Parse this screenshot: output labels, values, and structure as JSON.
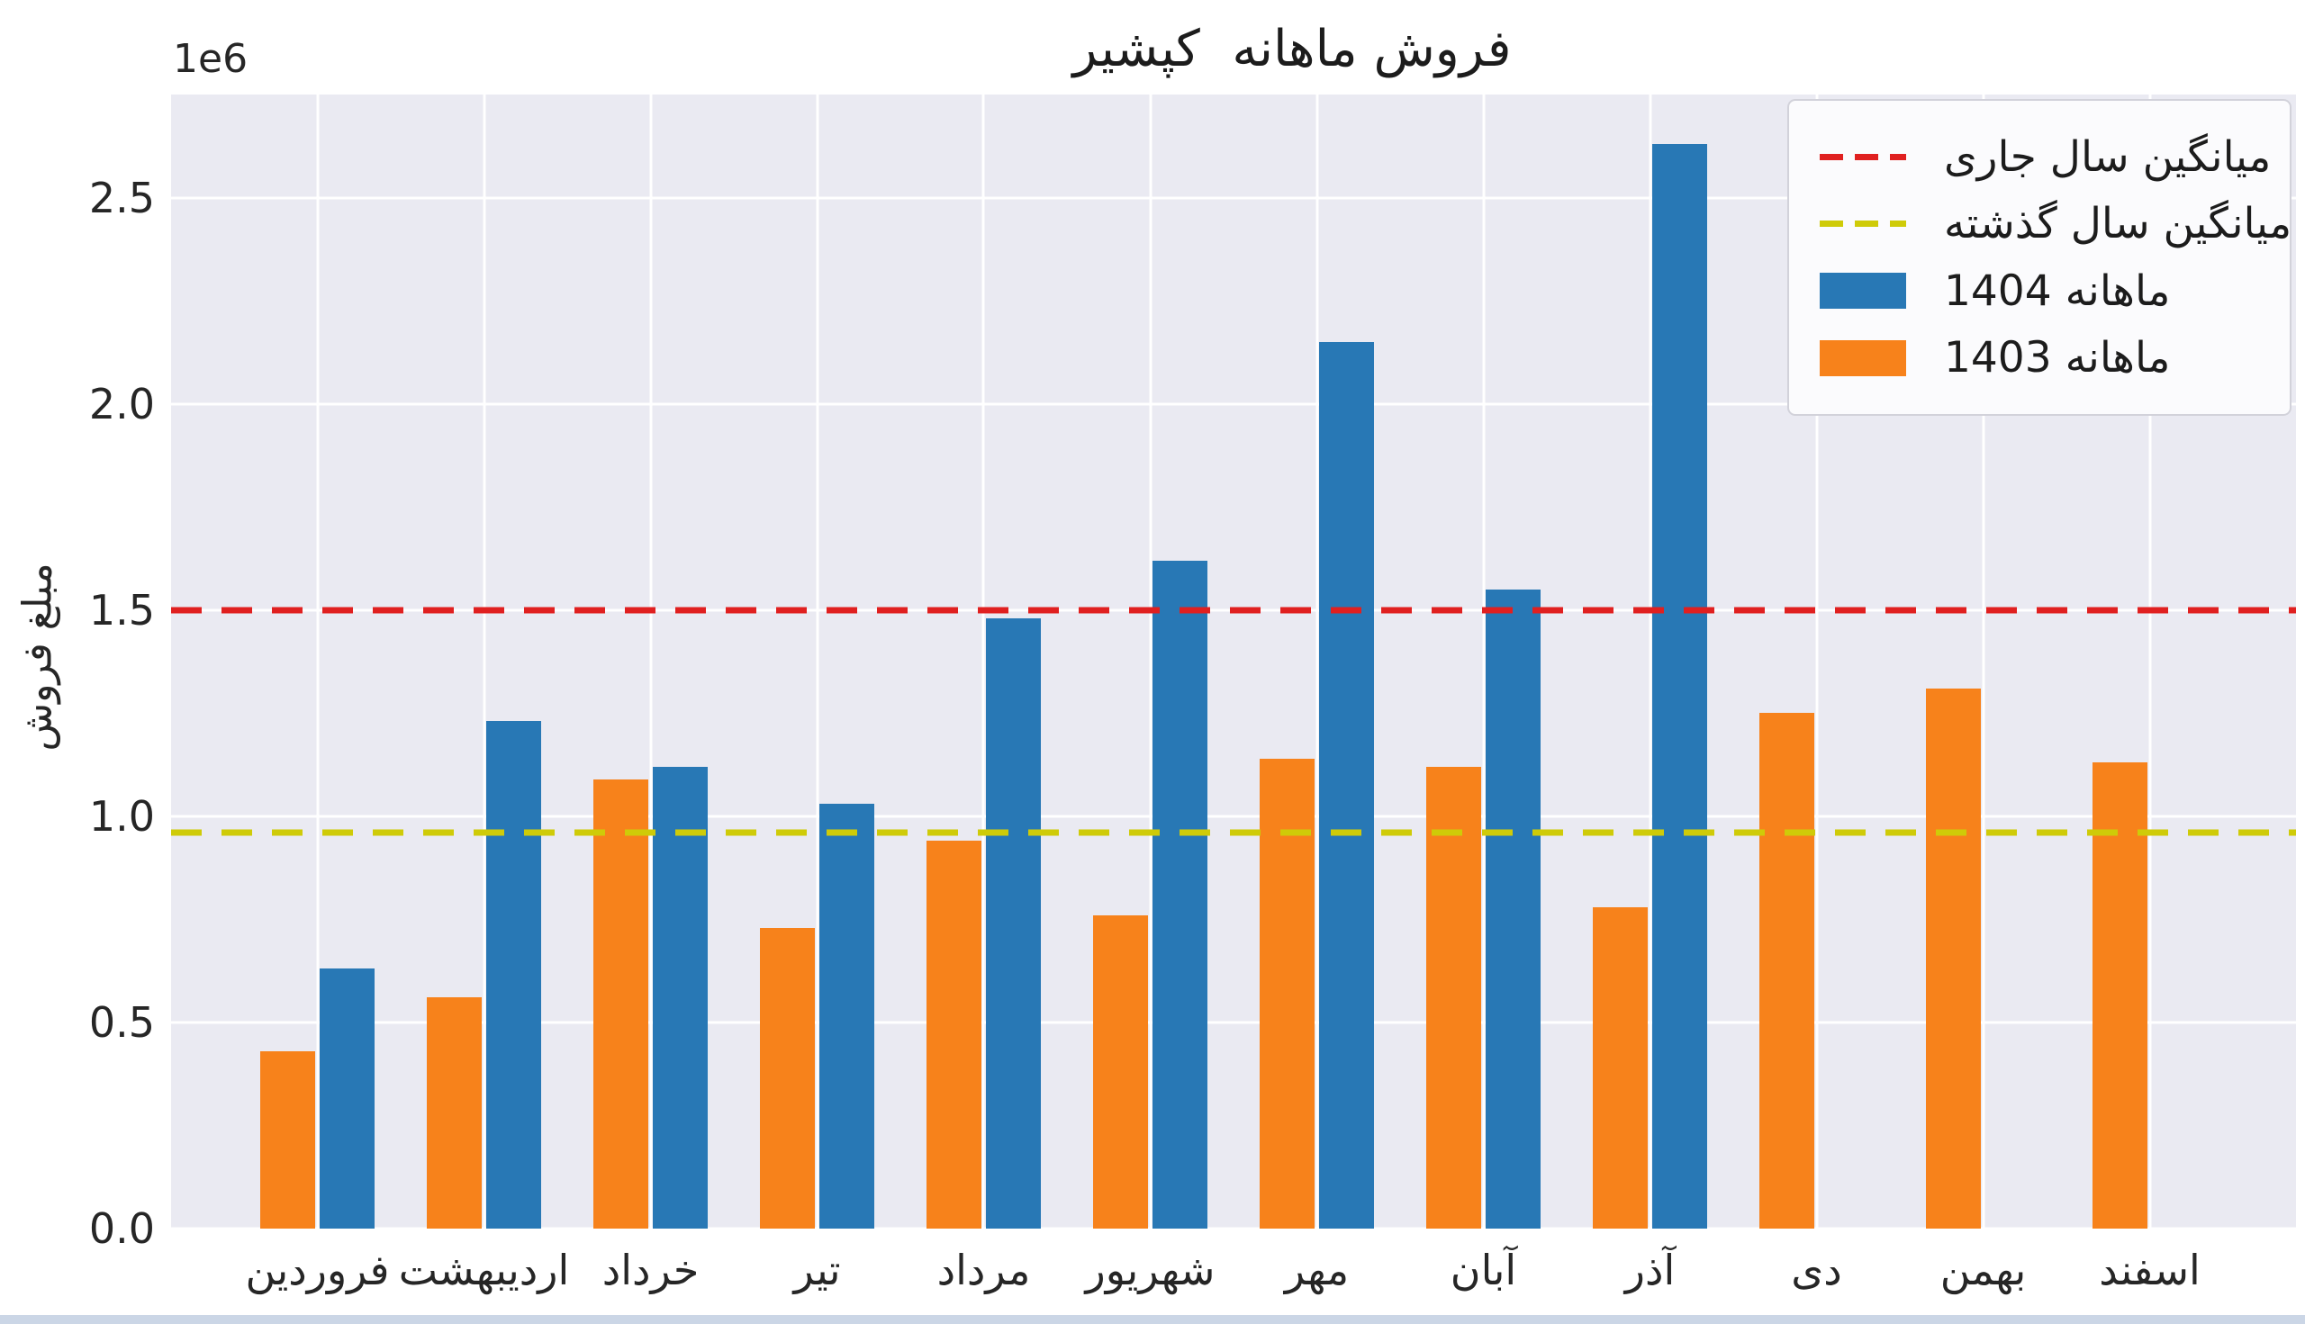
{
  "chart_data": {
    "type": "bar",
    "title": "فروش ماهانه  کپشیر",
    "ylabel": "مبلغ فروش",
    "xlabel": "",
    "scale_label": "1e6",
    "categories": [
      "فروردین",
      "اردیبهشت",
      "خرداد",
      "تیر",
      "مرداد",
      "شهریور",
      "مهر",
      "آبان",
      "آذر",
      "دی",
      "بهمن",
      "اسفند"
    ],
    "series": [
      {
        "name": "ماهانه 1404",
        "color": "#2878b5",
        "values": [
          630000,
          1230000,
          1120000,
          1030000,
          1480000,
          1620000,
          2150000,
          1550000,
          2630000,
          null,
          null,
          null
        ]
      },
      {
        "name": "ماهانه 1403",
        "color": "#f7821b",
        "values": [
          430000,
          560000,
          1090000,
          730000,
          940000,
          760000,
          1140000,
          1120000,
          780000,
          1250000,
          1310000,
          1130000
        ]
      }
    ],
    "mean_lines": [
      {
        "label": "میانگین سال جاری",
        "color": "#e02020",
        "value": 1500000
      },
      {
        "label": "میانگین سال گذشته",
        "color": "#cfcb08",
        "value": 960000
      }
    ],
    "yticks": [
      0.0,
      0.5,
      1.0,
      1.5,
      2.0,
      2.5
    ],
    "ylim": [
      0,
      2750000
    ],
    "grid": true,
    "legend_position": "upper right",
    "plot_background": "#eaeaf2"
  }
}
